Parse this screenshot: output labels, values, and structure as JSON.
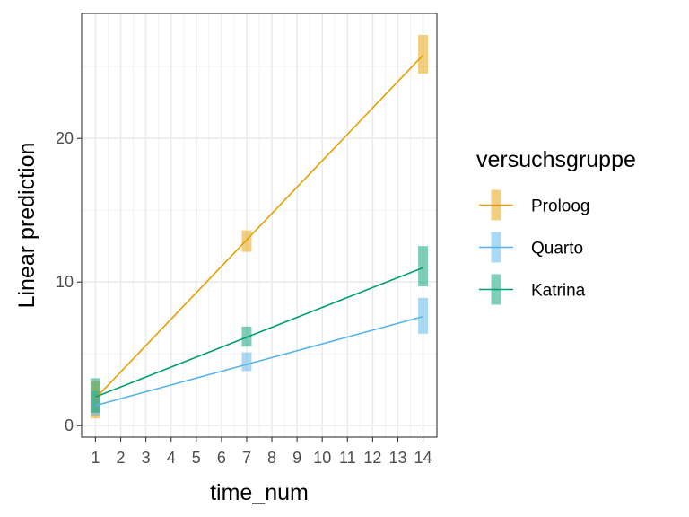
{
  "chart_data": {
    "type": "line",
    "title": "",
    "xlabel": "time_num",
    "ylabel": "Linear prediction",
    "x_ticks": [
      1,
      2,
      3,
      4,
      5,
      6,
      7,
      8,
      9,
      10,
      11,
      12,
      13,
      14
    ],
    "x_tick_labels": [
      "1",
      "2",
      "3",
      "4",
      "5",
      "6",
      "7",
      "8",
      "9",
      "10",
      "11",
      "12",
      "13",
      "14"
    ],
    "y_ticks": [
      0,
      10,
      20
    ],
    "y_tick_labels": [
      "0",
      "10",
      "20"
    ],
    "xlim": [
      0.45,
      14.55
    ],
    "ylim": [
      -0.8,
      28.7
    ],
    "grid": true,
    "legend": {
      "title": "versuchsgruppe",
      "position": "right"
    },
    "series": [
      {
        "name": "Proloog",
        "color": "#E69F00",
        "line": [
          {
            "x": 1,
            "y": 1.9
          },
          {
            "x": 14,
            "y": 25.8
          }
        ],
        "intervals": [
          {
            "x": 1,
            "estimate": 1.9,
            "low": 0.5,
            "high": 3.1
          },
          {
            "x": 7,
            "estimate": 12.8,
            "low": 12.1,
            "high": 13.6
          },
          {
            "x": 14,
            "estimate": 25.8,
            "low": 24.5,
            "high": 27.2
          }
        ]
      },
      {
        "name": "Quarto",
        "color": "#56B4E9",
        "line": [
          {
            "x": 1,
            "y": 1.4
          },
          {
            "x": 14,
            "y": 7.6
          }
        ],
        "intervals": [
          {
            "x": 1,
            "estimate": 1.4,
            "low": 0.7,
            "high": 2.4
          },
          {
            "x": 7,
            "estimate": 4.4,
            "low": 3.8,
            "high": 5.1
          },
          {
            "x": 14,
            "estimate": 7.6,
            "low": 6.4,
            "high": 8.9
          }
        ]
      },
      {
        "name": "Katrina",
        "color": "#009E73",
        "line": [
          {
            "x": 1,
            "y": 2.0
          },
          {
            "x": 14,
            "y": 11.0
          }
        ],
        "intervals": [
          {
            "x": 1,
            "estimate": 2.0,
            "low": 0.9,
            "high": 3.3
          },
          {
            "x": 7,
            "estimate": 6.2,
            "low": 5.5,
            "high": 6.9
          },
          {
            "x": 14,
            "estimate": 11.0,
            "low": 9.7,
            "high": 12.5
          }
        ]
      }
    ]
  }
}
